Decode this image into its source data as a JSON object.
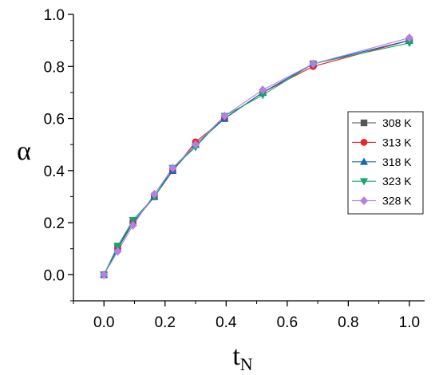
{
  "chart_data": {
    "type": "line",
    "title": "",
    "xlabel": "t",
    "xlabel_subscript": "N",
    "ylabel": "α",
    "xlim": [
      -0.1,
      1.05
    ],
    "ylim": [
      -0.1,
      1.0
    ],
    "x_ticks": [
      "0.0",
      "0.2",
      "0.4",
      "0.6",
      "0.8",
      "1.0"
    ],
    "y_ticks": [
      "0.0",
      "0.2",
      "0.4",
      "0.6",
      "0.8",
      "1.0"
    ],
    "grid": false,
    "legend_position": "right",
    "x": [
      0.0,
      0.045,
      0.095,
      0.165,
      0.225,
      0.3,
      0.395,
      0.52,
      0.685,
      1.0
    ],
    "series": [
      {
        "name": "308 K",
        "color": "#555555",
        "marker": "square",
        "values": [
          0.0,
          0.11,
          0.2,
          0.3,
          0.4,
          0.5,
          0.6,
          0.7,
          0.81,
          0.9
        ]
      },
      {
        "name": "313 K",
        "color": "#e8262a",
        "marker": "circle",
        "values": [
          0.0,
          0.1,
          0.2,
          0.3,
          0.4,
          0.51,
          0.6,
          0.7,
          0.8,
          0.9
        ]
      },
      {
        "name": "318 K",
        "color": "#1565c0",
        "marker": "triangle-up",
        "values": [
          0.0,
          0.1,
          0.2,
          0.3,
          0.4,
          0.5,
          0.6,
          0.7,
          0.81,
          0.9
        ]
      },
      {
        "name": "323 K",
        "color": "#13a86b",
        "marker": "triangle-down",
        "values": [
          0.0,
          0.11,
          0.21,
          0.3,
          0.41,
          0.49,
          0.61,
          0.69,
          0.81,
          0.89
        ]
      },
      {
        "name": "328 K",
        "color": "#b57fe0",
        "marker": "diamond",
        "values": [
          0.0,
          0.09,
          0.19,
          0.31,
          0.41,
          0.5,
          0.61,
          0.71,
          0.81,
          0.91
        ]
      }
    ]
  }
}
